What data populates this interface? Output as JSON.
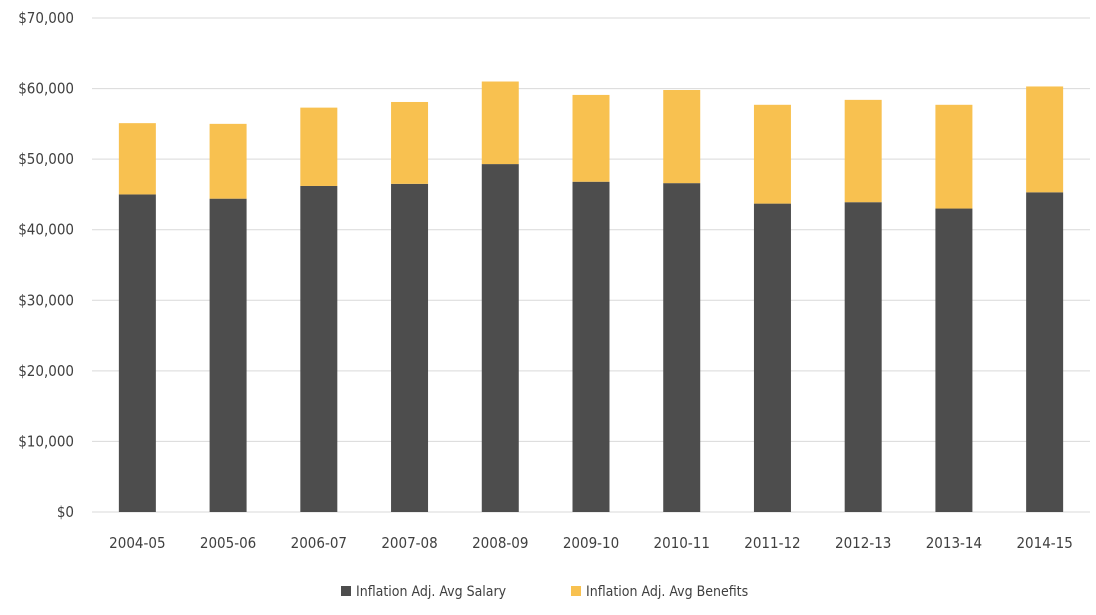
{
  "chart_data": {
    "type": "bar",
    "stacked": true,
    "title": "",
    "xlabel": "",
    "ylabel": "",
    "categories": [
      "2004-05",
      "2005-06",
      "2006-07",
      "2007-08",
      "2008-09",
      "2009-10",
      "2010-11",
      "2011-12",
      "2012-13",
      "2013-14",
      "2014-15"
    ],
    "series": [
      {
        "name": "Inflation Adj. Avg Salary",
        "color": "#4d4d4d",
        "values": [
          45000,
          44400,
          46200,
          46500,
          49300,
          46800,
          46600,
          43700,
          43900,
          43000,
          45300
        ]
      },
      {
        "name": "Inflation Adj. Avg Benefits",
        "color": "#f8c150",
        "values": [
          10100,
          10600,
          11100,
          11600,
          11700,
          12300,
          13200,
          14000,
          14500,
          14700,
          15000
        ]
      }
    ],
    "ylim": [
      0,
      70000
    ],
    "yticks": [
      0,
      10000,
      20000,
      30000,
      40000,
      50000,
      60000,
      70000
    ],
    "ytick_labels": [
      "$0",
      "$10,000",
      "$20,000",
      "$30,000",
      "$40,000",
      "$50,000",
      "$60,000",
      "$70,000"
    ],
    "grid": true,
    "legend_position": "bottom"
  }
}
